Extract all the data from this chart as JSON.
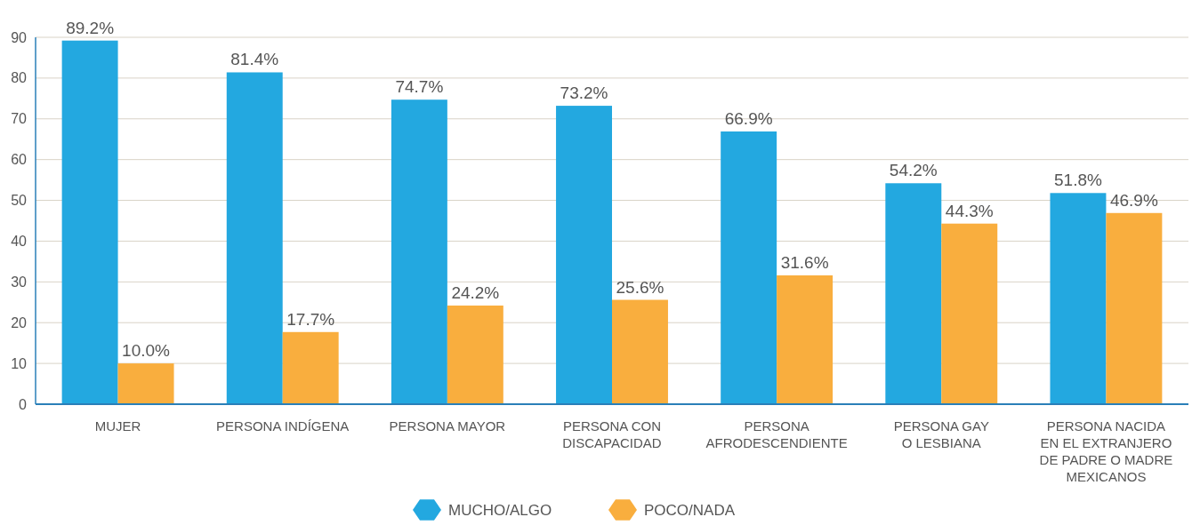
{
  "chart_data": {
    "type": "bar",
    "categories": [
      "MUJER",
      "PERSONA INDÍGENA",
      "PERSONA MAYOR",
      "PERSONA CON\nDISCAPACIDAD",
      "PERSONA\nAFRODESCENDIENTE",
      "PERSONA GAY\nO LESBIANA",
      "PERSONA NACIDA\nEN EL EXTRANJERO\nDE PADRE O MADRE\nMEXICANOS"
    ],
    "series": [
      {
        "name": "MUCHO/ALGO",
        "color": "#23a8e0",
        "values": [
          89.2,
          81.4,
          74.7,
          73.2,
          66.9,
          54.2,
          51.8
        ],
        "value_labels": [
          "89.2%",
          "81.4%",
          "74.7%",
          "73.2%",
          "66.9%",
          "54.2%",
          "51.8%"
        ]
      },
      {
        "name": "POCO/NADA",
        "color": "#f9ae3e",
        "values": [
          10.0,
          17.7,
          24.2,
          25.6,
          31.6,
          44.3,
          46.9
        ],
        "value_labels": [
          "10.0%",
          "17.7%",
          "24.2%",
          "25.6%",
          "31.6%",
          "44.3%",
          "46.9%"
        ]
      }
    ],
    "ylim": [
      0,
      90
    ],
    "yticks": [
      0,
      10,
      20,
      30,
      40,
      50,
      60,
      70,
      80,
      90
    ],
    "grid": "y",
    "legend": "bottom"
  }
}
